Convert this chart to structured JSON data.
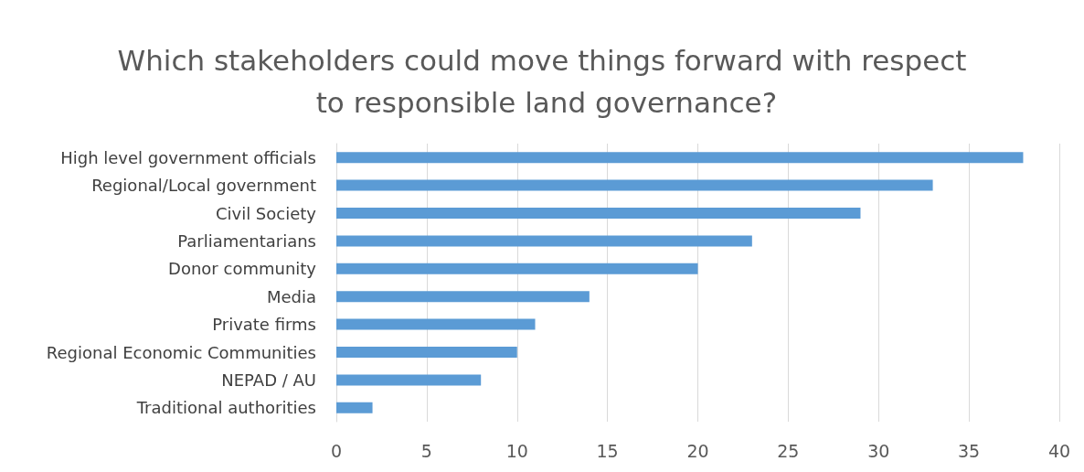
{
  "chart_data": {
    "type": "bar",
    "orientation": "horizontal",
    "title": "Which stakeholders could move things forward with respect to responsible land governance?",
    "categories": [
      "High level government officials",
      "Regional/Local government",
      "Civil Society",
      "Parliamentarians",
      "Donor community",
      "Media",
      "Private firms",
      "Regional Economic Communities",
      "NEPAD / AU",
      "Traditional authorities"
    ],
    "values": [
      38,
      33,
      29,
      23,
      20,
      14,
      11,
      10,
      8,
      2
    ],
    "color": "#5b9bd5",
    "xlim": [
      0,
      40
    ],
    "xticks": [
      0,
      5,
      10,
      15,
      20,
      25,
      30,
      35,
      40
    ],
    "grid": "x"
  }
}
